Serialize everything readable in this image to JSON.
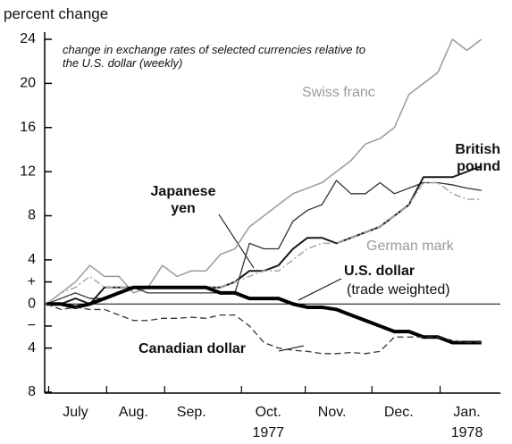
{
  "chart_data": {
    "type": "line",
    "title": "percent change",
    "subtitle": "change in exchange rates of selected currencies relative to the U.S. dollar (weekly)",
    "xlim": [
      0,
      31
    ],
    "ylim": [
      -8,
      24
    ],
    "yticks": [
      24,
      20,
      16,
      12,
      8,
      4,
      {
        "value": 2,
        "label": "+"
      },
      0,
      {
        "value": -2,
        "label": "−"
      },
      {
        "value": -4,
        "label": "4"
      },
      {
        "value": -8,
        "label": "8"
      }
    ],
    "xticks": [
      {
        "value": 2,
        "label": "July"
      },
      {
        "value": 6,
        "label": "Aug."
      },
      {
        "value": 10,
        "label": "Sep."
      },
      {
        "value": 15.3,
        "label": "Oct."
      },
      {
        "value": 19.7,
        "label": "Nov."
      },
      {
        "value": 24.3,
        "label": "Dec."
      },
      {
        "value": 29,
        "label": "Jan."
      }
    ],
    "year_labels": [
      {
        "value": 15.3,
        "label": "1977"
      },
      {
        "value": 29,
        "label": "1978"
      }
    ],
    "x": [
      0,
      1,
      2,
      3,
      4,
      5,
      6,
      7,
      8,
      9,
      10,
      11,
      12,
      13,
      14,
      15,
      16,
      17,
      18,
      19,
      20,
      21,
      22,
      23,
      24,
      25,
      26,
      27,
      28,
      29,
      30
    ],
    "series": [
      {
        "name": "Swiss franc",
        "color": "#9a9a9a",
        "style": "solid",
        "width": 1.5,
        "values": [
          0,
          1,
          2,
          3.5,
          2.5,
          2.5,
          1,
          1.5,
          3.5,
          2.5,
          3,
          3,
          4.5,
          5,
          7,
          8,
          9,
          10,
          10.5,
          11,
          12,
          13,
          14.5,
          15,
          16,
          19,
          20,
          21,
          24,
          23,
          24
        ]
      },
      {
        "name": "Japanese yen",
        "color": "#333333",
        "style": "solid",
        "width": 1.3,
        "values": [
          0,
          0.5,
          1,
          0.5,
          0.5,
          1,
          1.5,
          1,
          1,
          1,
          1,
          1,
          1,
          1,
          5.5,
          5,
          5,
          7.5,
          8.5,
          9,
          11.2,
          10,
          10,
          11,
          10,
          10.5,
          11,
          11,
          10.8,
          10.5,
          10.3
        ]
      },
      {
        "name": "British pound",
        "color": "#1a1a1a",
        "style": "solid",
        "width": 2,
        "values": [
          0,
          0,
          0.5,
          0,
          1.5,
          1.5,
          1.5,
          1.5,
          1.5,
          1.5,
          1.5,
          1.5,
          1.5,
          2,
          3,
          3,
          3.5,
          5,
          6,
          6,
          5.5,
          6,
          6.5,
          7,
          8,
          9,
          11.5,
          11.5,
          11.5,
          12,
          12.5
        ]
      },
      {
        "name": "German mark",
        "color": "#a8a8a8",
        "style": "dashdot",
        "width": 1.5,
        "values": [
          0,
          1,
          1.5,
          2.5,
          1.5,
          1.5,
          1.5,
          1.5,
          1.5,
          1.5,
          1.5,
          1.5,
          1.5,
          2,
          2.5,
          3,
          3,
          4,
          5,
          5.5,
          5.5,
          6,
          6.5,
          7,
          8,
          9,
          11,
          11,
          10,
          9.5,
          9.5
        ]
      },
      {
        "name": "U.S. dollar",
        "note": "(trade weighted)",
        "color": "#000000",
        "style": "solid",
        "width": 4,
        "values": [
          0,
          0,
          -0.3,
          0,
          0.5,
          1,
          1.5,
          1.5,
          1.5,
          1.5,
          1.5,
          1.5,
          1,
          1,
          0.5,
          0.5,
          0.5,
          0,
          -0.3,
          -0.3,
          -0.5,
          -1,
          -1.5,
          -2,
          -2.5,
          -2.5,
          -3,
          -3,
          -3.5,
          -3.5,
          -3.5
        ]
      },
      {
        "name": "Canadian dollar",
        "color": "#333333",
        "style": "dashed",
        "width": 1.3,
        "values": [
          0,
          -0.5,
          -0.3,
          -0.5,
          -0.5,
          -1,
          -1.5,
          -1.5,
          -1.3,
          -1.3,
          -1.2,
          -1.3,
          -1,
          -1,
          -2,
          -3.5,
          -4,
          -4.2,
          -4.3,
          -4.5,
          -4.5,
          -4.4,
          -4.5,
          -4.3,
          -3,
          -3,
          -3,
          -3,
          -3.3,
          -3.5,
          -3.5
        ]
      }
    ]
  }
}
